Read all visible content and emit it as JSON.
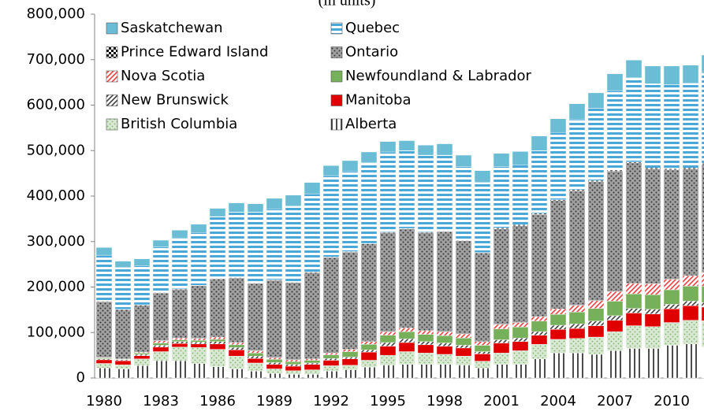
{
  "chart_data": {
    "type": "stacked-bar",
    "title": "(in units)",
    "categories": [
      "1980",
      null,
      null,
      "1983",
      null,
      null,
      "1986",
      null,
      null,
      "1989",
      null,
      null,
      "1992",
      null,
      null,
      "1995",
      null,
      null,
      "1998",
      null,
      null,
      "2001",
      null,
      null,
      "2004",
      null,
      null,
      "2007",
      null,
      null,
      "2010",
      null,
      null
    ],
    "ylim": [
      0,
      800000
    ],
    "yticks": [
      {
        "value": 0,
        "label": "0"
      },
      {
        "value": 100000,
        "label": "100,000"
      },
      {
        "value": 200000,
        "label": "200,000"
      },
      {
        "value": 300000,
        "label": "300,000"
      },
      {
        "value": 400000,
        "label": "400,000"
      },
      {
        "value": 500000,
        "label": "500,000"
      },
      {
        "value": 600000,
        "label": "600,000"
      },
      {
        "value": 700000,
        "label": "700,000"
      },
      {
        "value": 800000,
        "label": "800,000"
      }
    ],
    "series": [
      {
        "name": "Alberta",
        "color": "#000000",
        "pattern": "vertical",
        "values": [
          22000,
          20000,
          27000,
          38000,
          38000,
          32000,
          25000,
          20000,
          15000,
          10000,
          8000,
          8000,
          15000,
          18000,
          24000,
          28000,
          30000,
          30000,
          30000,
          28000,
          22000,
          30000,
          30000,
          42000,
          55000,
          55000,
          52000,
          60000,
          65000,
          65000,
          72000,
          75000,
          68000
        ]
      },
      {
        "name": "British Columbia",
        "color": "#7fb56a",
        "pattern": "dots",
        "values": [
          10000,
          9000,
          15000,
          20000,
          30000,
          35000,
          38000,
          28000,
          18000,
          10000,
          8000,
          10000,
          12000,
          10000,
          15000,
          22000,
          28000,
          25000,
          22000,
          20000,
          15000,
          25000,
          30000,
          32000,
          30000,
          32000,
          38000,
          42000,
          50000,
          48000,
          50000,
          52000,
          58000
        ]
      },
      {
        "name": "Manitoba",
        "color": "#e00000",
        "pattern": "solid",
        "values": [
          8000,
          9000,
          7000,
          10000,
          8000,
          8000,
          12000,
          14000,
          10000,
          10000,
          10000,
          12000,
          12000,
          14000,
          18000,
          20000,
          20000,
          18000,
          18000,
          18000,
          16000,
          22000,
          20000,
          20000,
          22000,
          22000,
          25000,
          25000,
          28000,
          28000,
          30000,
          32000,
          30000
        ]
      },
      {
        "name": "New Brunswick",
        "color": "#404040",
        "pattern": "diagonal",
        "values": [
          2000,
          2000,
          3000,
          4000,
          4000,
          4000,
          5000,
          5000,
          5000,
          4000,
          4000,
          3000,
          4000,
          4000,
          5000,
          8000,
          8000,
          7000,
          7000,
          6000,
          5000,
          7000,
          8000,
          8000,
          9000,
          10000,
          10000,
          10000,
          10000,
          10000,
          10000,
          10000,
          10000
        ]
      },
      {
        "name": "Newfoundland & Labrador",
        "color": "#77b05a",
        "pattern": "solid",
        "values": [
          2000,
          1000,
          3000,
          5000,
          4000,
          4000,
          5000,
          6000,
          7000,
          7000,
          6000,
          6000,
          8000,
          12000,
          12000,
          16000,
          16000,
          16000,
          16000,
          16000,
          14000,
          24000,
          24000,
          23000,
          24000,
          26000,
          28000,
          32000,
          32000,
          32000,
          32000,
          33000,
          36000
        ]
      },
      {
        "name": "Nova Scotia",
        "color": "#f04040",
        "pattern": "diagonal",
        "values": [
          1000,
          1000,
          2000,
          5000,
          4000,
          4000,
          5000,
          5000,
          5000,
          4000,
          4000,
          3000,
          4000,
          5000,
          6000,
          8000,
          8000,
          8000,
          9000,
          9000,
          8000,
          10000,
          10000,
          10000,
          12000,
          15000,
          17000,
          21000,
          23000,
          24000,
          23000,
          23000,
          30000
        ]
      },
      {
        "name": "Ontario",
        "color": "#a0a0a0",
        "pattern": "dark-dots",
        "values": [
          123000,
          108000,
          103000,
          105000,
          107000,
          116000,
          128000,
          142000,
          148000,
          170000,
          170000,
          190000,
          210000,
          214000,
          215000,
          218000,
          218000,
          216000,
          220000,
          205000,
          195000,
          210000,
          213000,
          225000,
          238000,
          252000,
          262000,
          265000,
          265000,
          253000,
          241000,
          235000,
          238000
        ]
      },
      {
        "name": "Prince Edward Island",
        "color": "#000000",
        "pattern": "check",
        "values": [
          1000,
          1000,
          1000,
          1000,
          1000,
          1000,
          1000,
          1000,
          1000,
          1000,
          1000,
          1000,
          1000,
          1000,
          1000,
          1000,
          1000,
          1000,
          1000,
          1000,
          1000,
          2000,
          2000,
          2000,
          2000,
          2000,
          2000,
          2000,
          2000,
          2000,
          2000,
          2000,
          2000
        ]
      },
      {
        "name": "Quebec",
        "color": "#4aa8d8",
        "pattern": "horizontal",
        "values": [
          101000,
          92000,
          86000,
          100000,
          112000,
          116000,
          136000,
          144000,
          156000,
          156000,
          167000,
          172000,
          179000,
          177000,
          177000,
          176000,
          171000,
          169000,
          167000,
          162000,
          154000,
          135000,
          131000,
          138000,
          148000,
          154000,
          159000,
          175000,
          185000,
          185000,
          185000,
          186000,
          200000
        ]
      },
      {
        "name": "Saskatchewan",
        "color": "#6bbdd6",
        "pattern": "solid",
        "values": [
          17000,
          14000,
          15000,
          15000,
          17000,
          18000,
          18000,
          20000,
          18000,
          23000,
          24000,
          25000,
          22000,
          23000,
          24000,
          23000,
          22000,
          22000,
          25000,
          25000,
          26000,
          29000,
          30000,
          32000,
          30000,
          35000,
          34000,
          37000,
          39000,
          39000,
          41000,
          40000,
          38000
        ]
      }
    ]
  }
}
